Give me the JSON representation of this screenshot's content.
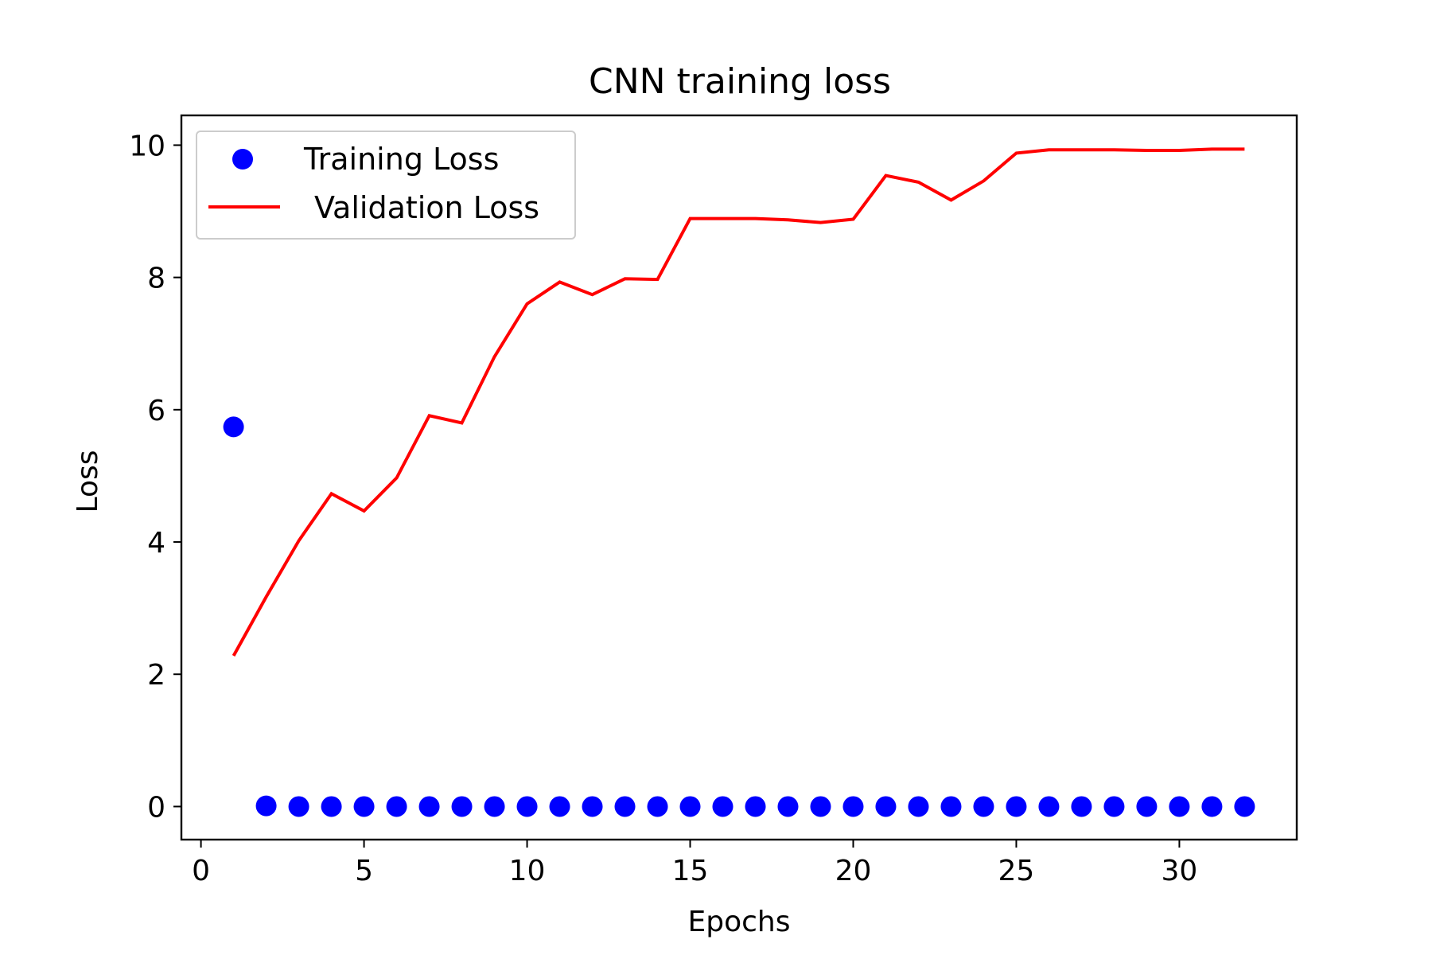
{
  "chart_data": {
    "type": "scatter",
    "title": "CNN training loss",
    "xlabel": "Epochs",
    "ylabel": "Loss",
    "xlim": [
      -0.6,
      33.6
    ],
    "ylim": [
      -0.5,
      10.45
    ],
    "xticks": [
      0,
      5,
      10,
      15,
      20,
      25,
      30
    ],
    "yticks": [
      0,
      2,
      4,
      6,
      8,
      10
    ],
    "grid": false,
    "legend_position": "upper-left",
    "x": [
      1,
      2,
      3,
      4,
      5,
      6,
      7,
      8,
      9,
      10,
      11,
      12,
      13,
      14,
      15,
      16,
      17,
      18,
      19,
      20,
      21,
      22,
      23,
      24,
      25,
      26,
      27,
      28,
      29,
      30,
      31,
      32
    ],
    "series": [
      {
        "name": "Training Loss",
        "style": "markers",
        "color": "#0000ff",
        "values": [
          5.74,
          0.01,
          0.0,
          0.0,
          0.0,
          0.0,
          0.0,
          0.0,
          0.0,
          0.0,
          0.0,
          0.0,
          0.0,
          0.0,
          0.0,
          0.0,
          0.0,
          0.0,
          0.0,
          0.0,
          0.0,
          0.0,
          0.0,
          0.0,
          0.0,
          0.0,
          0.0,
          0.0,
          0.0,
          0.0,
          0.0,
          0.0
        ]
      },
      {
        "name": "Validation Loss",
        "style": "line",
        "color": "#ff0000",
        "values": [
          2.28,
          3.17,
          4.02,
          4.73,
          4.47,
          4.97,
          5.91,
          5.8,
          6.8,
          7.6,
          7.93,
          7.74,
          7.98,
          7.97,
          8.89,
          8.89,
          8.89,
          8.87,
          8.83,
          8.88,
          9.54,
          9.44,
          9.17,
          9.46,
          9.88,
          9.93,
          9.93,
          9.93,
          9.92,
          9.92,
          9.94,
          9.94
        ]
      }
    ]
  }
}
